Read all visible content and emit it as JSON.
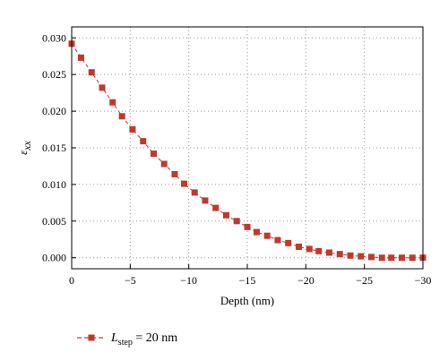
{
  "chart_data": {
    "type": "line",
    "xlabel": "Depth (nm)",
    "ylabel_base": "ε",
    "ylabel_sub": "xx",
    "xlim": [
      0,
      -30
    ],
    "ylim": [
      -0.0015,
      0.0315
    ],
    "x_ticks": [
      0,
      -5,
      -10,
      -15,
      -20,
      -25,
      -30
    ],
    "x_tick_labels": [
      "0",
      "−5",
      "−10",
      "−15",
      "−20",
      "−25",
      "−30"
    ],
    "y_ticks": [
      0.0,
      0.005,
      0.01,
      0.015,
      0.02,
      0.025,
      0.03
    ],
    "y_tick_labels": [
      "0.000",
      "0.005",
      "0.010",
      "0.015",
      "0.020",
      "0.025",
      "0.030"
    ],
    "grid": "dotted",
    "series": [
      {
        "name": "L_step = 20 nm",
        "color": "#c0392b",
        "marker": "square",
        "line_style": "dashed",
        "x": [
          0,
          -0.8,
          -1.7,
          -2.6,
          -3.5,
          -4.3,
          -5.2,
          -6.1,
          -7.0,
          -7.9,
          -8.8,
          -9.6,
          -10.5,
          -11.4,
          -12.3,
          -13.2,
          -14.1,
          -15.0,
          -15.8,
          -16.7,
          -17.6,
          -18.5,
          -19.4,
          -20.3,
          -21.1,
          -22.0,
          -22.9,
          -23.8,
          -24.7,
          -25.6,
          -26.5,
          -27.3,
          -28.2,
          -29.1,
          -30.0
        ],
        "y": [
          0.0292,
          0.0273,
          0.0253,
          0.0232,
          0.0212,
          0.0193,
          0.0175,
          0.0159,
          0.0142,
          0.0128,
          0.0114,
          0.0101,
          0.0089,
          0.0078,
          0.0068,
          0.0058,
          0.005,
          0.0042,
          0.0035,
          0.003,
          0.0024,
          0.002,
          0.0015,
          0.0012,
          0.0009,
          0.0007,
          0.0005,
          0.0003,
          0.0002,
          0.0001,
          0.0,
          0.0,
          0.0,
          0.0,
          0.0
        ]
      }
    ],
    "legend": {
      "placement": "bottom-left",
      "symbol": "L",
      "subscript": "step",
      "value_text": " = 20 nm"
    }
  }
}
